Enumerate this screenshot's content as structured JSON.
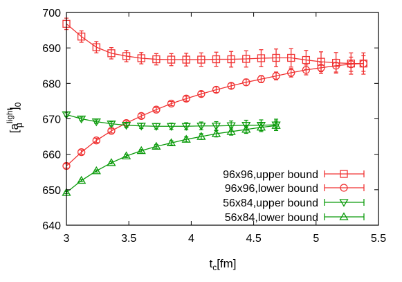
{
  "chart_data": {
    "type": "line",
    "xlabel": "t_c[fm]",
    "xlabel_parts": {
      "base": "t",
      "sub": "c",
      "unit": "[fm]"
    },
    "ylabel_parts": {
      "open": "[a",
      "sup": "light",
      "sub": "μ",
      "close": "]",
      "tail": "0"
    },
    "xlim": [
      3,
      5.5
    ],
    "ylim": [
      640,
      700
    ],
    "xticks": [
      3,
      3.5,
      4,
      4.5,
      5,
      5.5
    ],
    "xtick_labels": [
      "3",
      "3.5",
      "4",
      "4.5",
      "5",
      "5.5"
    ],
    "yticks": [
      640,
      650,
      660,
      670,
      680,
      690,
      700
    ],
    "ytick_labels": [
      "640",
      "650",
      "660",
      "670",
      "680",
      "690",
      "700"
    ],
    "grid": false,
    "legend_position": "bottom-right",
    "series": [
      {
        "name": "96x96,upper bound",
        "color": "#f03232",
        "marker": "square",
        "x": [
          3.0,
          3.12,
          3.24,
          3.36,
          3.48,
          3.6,
          3.72,
          3.84,
          3.96,
          4.08,
          4.2,
          4.32,
          4.44,
          4.56,
          4.68,
          4.8,
          4.92,
          5.04,
          5.16,
          5.28,
          5.38
        ],
        "y": [
          696.8,
          693.2,
          690.2,
          688.5,
          687.7,
          687.1,
          686.8,
          686.7,
          686.7,
          686.7,
          686.8,
          686.8,
          686.9,
          687.1,
          687.2,
          687.2,
          686.6,
          686.1,
          685.8,
          685.6,
          685.6
        ],
        "err": [
          1.6,
          1.6,
          1.6,
          1.6,
          1.6,
          1.6,
          1.6,
          1.7,
          1.8,
          1.9,
          2.0,
          2.2,
          2.3,
          2.4,
          2.5,
          2.6,
          2.7,
          2.8,
          2.9,
          3.0,
          3.0
        ]
      },
      {
        "name": "96x96,lower bound",
        "color": "#f03232",
        "marker": "circle",
        "x": [
          3.0,
          3.12,
          3.24,
          3.36,
          3.48,
          3.6,
          3.72,
          3.84,
          3.96,
          4.08,
          4.2,
          4.32,
          4.44,
          4.56,
          4.68,
          4.8,
          4.92,
          5.04,
          5.16,
          5.28,
          5.38
        ],
        "y": [
          656.7,
          660.6,
          663.9,
          666.6,
          668.8,
          670.8,
          672.6,
          674.3,
          675.7,
          677.0,
          678.2,
          679.3,
          680.3,
          681.2,
          682.1,
          683.0,
          683.8,
          684.4,
          685.0,
          685.4,
          685.6
        ],
        "err": [
          0.6,
          0.6,
          0.6,
          0.6,
          0.6,
          0.6,
          0.6,
          0.6,
          0.7,
          0.7,
          0.8,
          0.8,
          0.9,
          1.0,
          1.1,
          1.2,
          1.4,
          1.6,
          1.8,
          2.0,
          2.2
        ]
      },
      {
        "name": "56x84,upper bound",
        "color": "#0a9a0a",
        "marker": "triangle-down",
        "x": [
          3.0,
          3.12,
          3.24,
          3.36,
          3.48,
          3.6,
          3.72,
          3.84,
          3.96,
          4.08,
          4.2,
          4.32,
          4.44,
          4.56,
          4.68
        ],
        "y": [
          671.2,
          670.0,
          669.2,
          668.6,
          668.2,
          668.0,
          667.9,
          667.9,
          667.9,
          668.0,
          668.0,
          668.1,
          668.2,
          668.2,
          668.3
        ],
        "err": [
          0.5,
          0.5,
          0.5,
          0.6,
          0.6,
          0.7,
          0.8,
          0.9,
          1.0,
          1.1,
          1.2,
          1.3,
          1.4,
          1.5,
          1.6
        ]
      },
      {
        "name": "56x84,lower bound",
        "color": "#0a9a0a",
        "marker": "triangle-up",
        "x": [
          3.0,
          3.12,
          3.24,
          3.36,
          3.48,
          3.6,
          3.72,
          3.84,
          3.96,
          4.08,
          4.2,
          4.32,
          4.44,
          4.56,
          4.68
        ],
        "y": [
          649.2,
          652.6,
          655.3,
          657.6,
          659.5,
          661.0,
          662.2,
          663.2,
          664.2,
          665.0,
          665.8,
          666.4,
          667.0,
          667.6,
          668.1
        ],
        "err": [
          0.3,
          0.3,
          0.3,
          0.3,
          0.4,
          0.4,
          0.5,
          0.6,
          0.7,
          0.8,
          0.9,
          1.0,
          1.1,
          1.2,
          1.3
        ]
      }
    ]
  }
}
